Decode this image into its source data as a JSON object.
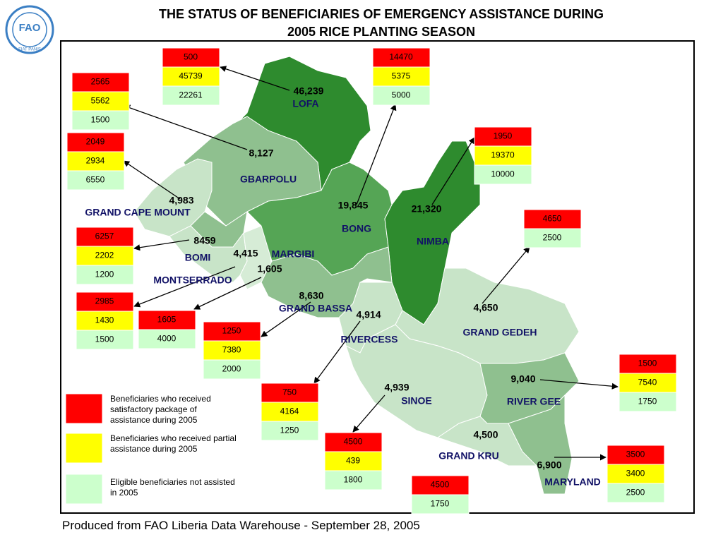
{
  "logo": {
    "text": "FAO",
    "motto": "FIAT PANIS"
  },
  "title": [
    "THE STATUS OF BENEFICIARIES OF EMERGENCY ASSISTANCE DURING",
    "2005 RICE PLANTING SEASON"
  ],
  "footer": "Produced from FAO Liberia Data Warehouse - September 28, 2005",
  "legend": {
    "satisfactory": {
      "label": "Beneficiaries who received satisfactory package of assistance during 2005",
      "color": "#ff0000"
    },
    "partial": {
      "label": "Beneficiaries who received partial assistance during 2005",
      "color": "#ffff00"
    },
    "not_assisted": {
      "label": "Eligible beneficiaries not assisted in 2005",
      "color": "#ccffcc"
    }
  },
  "counties": [
    {
      "name": "LOFA",
      "total": "46,239",
      "boxes": {
        "satisfactory": 500,
        "partial": 45739,
        "not_assisted": 22261
      }
    },
    {
      "name": "GBARPOLU",
      "total": "8,127",
      "boxes": {
        "satisfactory": 2565,
        "partial": 5562,
        "not_assisted": 1500
      }
    },
    {
      "name": "GRAND CAPE MOUNT",
      "total": "4,983",
      "boxes": {
        "satisfactory": 2049,
        "partial": 2934,
        "not_assisted": 6550
      }
    },
    {
      "name": "BOMI",
      "total": "8459",
      "boxes": {
        "satisfactory": 6257,
        "partial": 2202,
        "not_assisted": 1200
      }
    },
    {
      "name": "MARGIBI",
      "total": "4,415",
      "boxes": {
        "satisfactory": 2985,
        "partial": 1430,
        "not_assisted": 1500
      }
    },
    {
      "name": "MONTSERRADO",
      "total": "1,605",
      "boxes": {
        "satisfactory": 1605,
        "not_assisted": 4000
      }
    },
    {
      "name": "GRAND BASSA",
      "total": "8,630",
      "boxes": {
        "satisfactory": 1250,
        "partial": 7380,
        "not_assisted": 2000
      }
    },
    {
      "name": "RIVERCESS",
      "total": "4,914",
      "boxes": {
        "satisfactory": 750,
        "partial": 4164,
        "not_assisted": 1250
      }
    },
    {
      "name": "SINOE",
      "total": "4,939",
      "boxes": {
        "satisfactory": 4500,
        "partial": 439,
        "not_assisted": 1800
      }
    },
    {
      "name": "GRAND KRU",
      "total": "4,500",
      "boxes": {
        "satisfactory": 4500,
        "not_assisted": 1750
      }
    },
    {
      "name": "MARYLAND",
      "total": "6,900",
      "boxes": {
        "satisfactory": 3500,
        "partial": 3400,
        "not_assisted": 2500
      }
    },
    {
      "name": "RIVER GEE",
      "total": "9,040",
      "boxes": {
        "satisfactory": 1500,
        "partial": 7540,
        "not_assisted": 1750
      }
    },
    {
      "name": "GRAND GEDEH",
      "total": "4,650",
      "boxes": {
        "satisfactory": 4650,
        "not_assisted": 2500
      }
    },
    {
      "name": "NIMBA",
      "total": "21,320",
      "boxes": {
        "satisfactory": 1950,
        "partial": 19370,
        "not_assisted": 10000
      }
    },
    {
      "name": "BONG",
      "total": "19,845",
      "boxes": {
        "satisfactory": 14470,
        "partial": 5375,
        "not_assisted": 5000
      }
    }
  ]
}
